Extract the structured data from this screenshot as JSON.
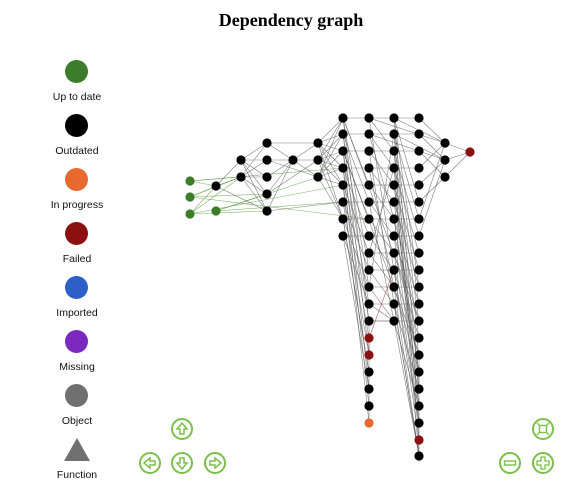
{
  "title": "Dependency graph",
  "legend": [
    {
      "label": "Up to date",
      "color": "#3b7d2a",
      "shape": "circle"
    },
    {
      "label": "Outdated",
      "color": "#000000",
      "shape": "circle"
    },
    {
      "label": "In progress",
      "color": "#e8692e",
      "shape": "circle"
    },
    {
      "label": "Failed",
      "color": "#8b1010",
      "shape": "circle"
    },
    {
      "label": "Imported",
      "color": "#2e5fc8",
      "shape": "circle"
    },
    {
      "label": "Missing",
      "color": "#7a28c0",
      "shape": "circle"
    },
    {
      "label": "Object",
      "color": "#707070",
      "shape": "circle"
    },
    {
      "label": "Function",
      "color": "#707070",
      "shape": "triangle"
    }
  ],
  "controls": [
    {
      "name": "pan-up-button",
      "icon": "arrow-up-icon"
    },
    {
      "name": "pan-left-button",
      "icon": "arrow-left-icon"
    },
    {
      "name": "pan-down-button",
      "icon": "arrow-down-icon"
    },
    {
      "name": "pan-right-button",
      "icon": "arrow-right-icon"
    },
    {
      "name": "zoom-fit-button",
      "icon": "fit-to-screen-icon"
    },
    {
      "name": "zoom-out-button",
      "icon": "minus-icon"
    },
    {
      "name": "zoom-in-button",
      "icon": "plus-icon"
    }
  ],
  "colors": {
    "accent": "#7ac04a",
    "edge": "#555555",
    "edge_green": "#5a9a3c",
    "edge_red": "#9a2a2a"
  }
}
